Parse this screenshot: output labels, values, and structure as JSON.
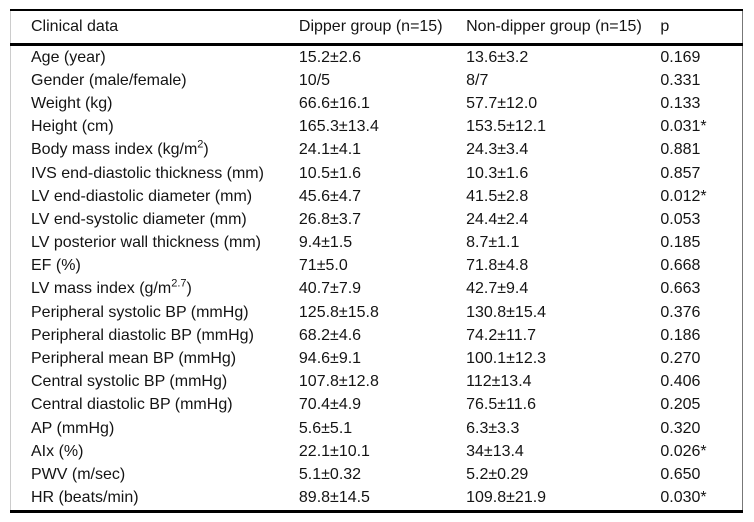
{
  "colors": {
    "background": "#ffffff",
    "text": "#141414",
    "rule": "#000000",
    "left_edge": "#cccccc",
    "right_edge": "#777777"
  },
  "table": {
    "columns": [
      "Clinical data",
      "Dipper group (n=15)",
      "Non-dipper group (n=15)",
      "p"
    ],
    "rows": [
      {
        "label": "Age (year)",
        "dipper": "15.2±2.6",
        "nondipper": "13.6±3.2",
        "p": "0.169"
      },
      {
        "label": "Gender (male/female)",
        "dipper": "10/5",
        "nondipper": "8/7",
        "p": "0.331"
      },
      {
        "label": "Weight (kg)",
        "dipper": "66.6±16.1",
        "nondipper": "57.7±12.0",
        "p": "0.133"
      },
      {
        "label": "Height (cm)",
        "dipper": "165.3±13.4",
        "nondipper": "153.5±12.1",
        "p": "0.031*"
      },
      {
        "label": [
          {
            "t": "Body mass index (kg/m"
          },
          {
            "t": "2",
            "sup": true
          },
          {
            "t": ")"
          }
        ],
        "dipper": "24.1±4.1",
        "nondipper": "24.3±3.4",
        "p": "0.881"
      },
      {
        "label": "IVS end-diastolic thickness (mm)",
        "dipper": "10.5±1.6",
        "nondipper": "10.3±1.6",
        "p": "0.857"
      },
      {
        "label": "LV end-diastolic diameter (mm)",
        "dipper": "45.6±4.7",
        "nondipper": "41.5±2.8",
        "p": "0.012*"
      },
      {
        "label": "LV end-systolic diameter (mm)",
        "dipper": "26.8±3.7",
        "nondipper": "24.4±2.4",
        "p": "0.053"
      },
      {
        "label": "LV posterior wall thickness (mm)",
        "dipper": "9.4±1.5",
        "nondipper": "8.7±1.1",
        "p": "0.185"
      },
      {
        "label": "EF (%)",
        "dipper": "71±5.0",
        "nondipper": "71.8±4.8",
        "p": "0.668"
      },
      {
        "label": [
          {
            "t": "LV mass index (g/m"
          },
          {
            "t": "2.7",
            "sup": true
          },
          {
            "t": ")"
          }
        ],
        "dipper": "40.7±7.9",
        "nondipper": "42.7±9.4",
        "p": "0.663"
      },
      {
        "label": "Peripheral systolic BP (mmHg)",
        "dipper": "125.8±15.8",
        "nondipper": "130.8±15.4",
        "p": "0.376"
      },
      {
        "label": "Peripheral diastolic BP (mmHg)",
        "dipper": "68.2±4.6",
        "nondipper": "74.2±11.7",
        "p": "0.186"
      },
      {
        "label": "Peripheral mean BP (mmHg)",
        "dipper": "94.6±9.1",
        "nondipper": "100.1±12.3",
        "p": "0.270"
      },
      {
        "label": "Central systolic BP (mmHg)",
        "dipper": "107.8±12.8",
        "nondipper": "112±13.4",
        "p": "0.406"
      },
      {
        "label": "Central diastolic BP (mmHg)",
        "dipper": "70.4±4.9",
        "nondipper": "76.5±11.6",
        "p": "0.205"
      },
      {
        "label": "AP (mmHg)",
        "dipper": "5.6±5.1",
        "nondipper": "6.3±3.3",
        "p": "0.320"
      },
      {
        "label": "AIx (%)",
        "dipper": "22.1±10.1",
        "nondipper": "34±13.4",
        "p": "0.026*"
      },
      {
        "label": "PWV (m/sec)",
        "dipper": "5.1±0.32",
        "nondipper": "5.2±0.29",
        "p": "0.650"
      },
      {
        "label": "HR (beats/min)",
        "dipper": "89.8±14.5",
        "nondipper": "109.8±21.9",
        "p": "0.030*"
      }
    ]
  }
}
